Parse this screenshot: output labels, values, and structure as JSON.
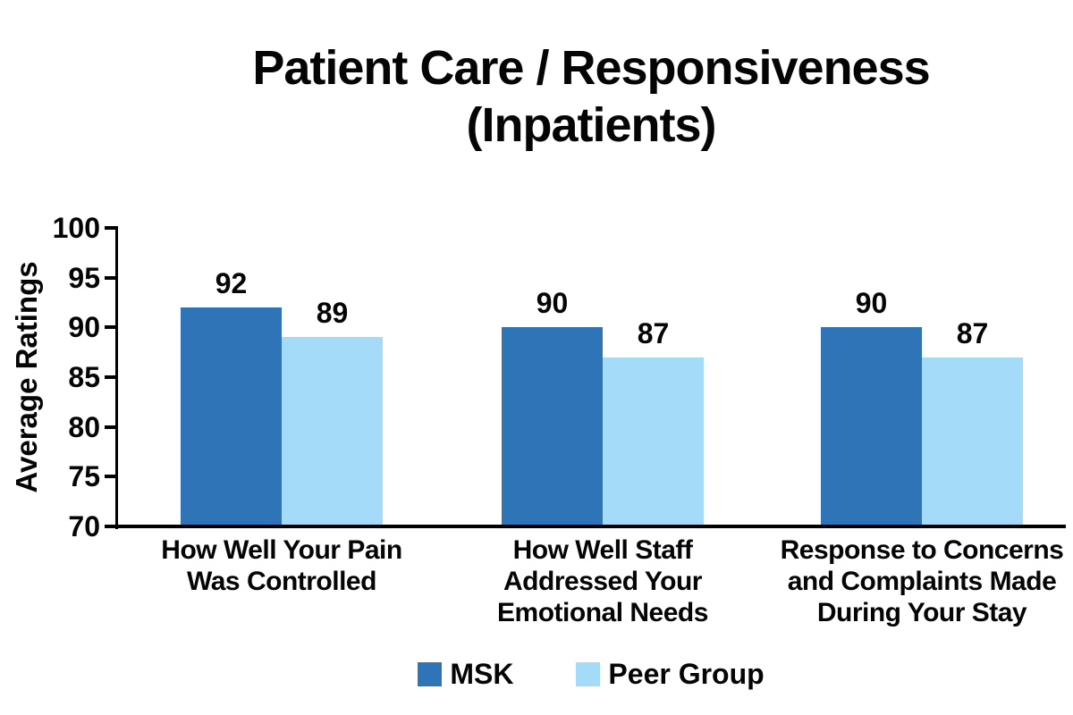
{
  "title": "Patient Care / Responsiveness\n(Inpatients)",
  "chart_data": {
    "type": "bar",
    "title": "Patient Care / Responsiveness (Inpatients)",
    "categories": [
      "How Well Your Pain\nWas Controlled",
      "How Well Staff\nAddressed Your\nEmotional Needs",
      "Response to Concerns\nand Complaints Made\nDuring Your Stay"
    ],
    "series": [
      {
        "name": "MSK",
        "color": "#2E74B6",
        "values": [
          92,
          90,
          90
        ]
      },
      {
        "name": "Peer Group",
        "color": "#A4DBF8",
        "values": [
          89,
          87,
          87
        ]
      }
    ],
    "xlabel": "",
    "ylabel": "Average Ratings",
    "ylim": [
      70,
      100
    ],
    "yticks": [
      70,
      75,
      80,
      85,
      90,
      95,
      100
    ],
    "grid": false,
    "bar_value_labels": true,
    "legend_position": "bottom"
  },
  "colors": {
    "msk_bar": "#2E74B6",
    "peer_group_bar": "#A4DBF8",
    "axis": "#000000",
    "text": "#050505",
    "background": "#FFFFFF"
  }
}
